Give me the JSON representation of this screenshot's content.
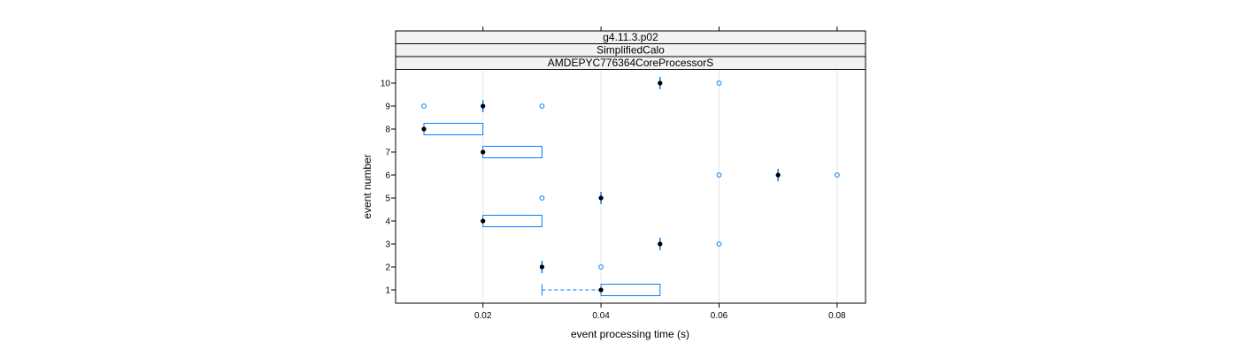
{
  "chart_data": {
    "type": "box",
    "strips": [
      "g4.11.3.p02",
      "SimplifiedCalo",
      "AMDEPYC776364CoreProcessorS"
    ],
    "xlabel": "event processing time (s)",
    "ylabel": "event number",
    "xlim": [
      0.005,
      0.085
    ],
    "x_ticks": [
      {
        "value": 0.02,
        "label": "0.02"
      },
      {
        "value": 0.04,
        "label": "0.04"
      },
      {
        "value": 0.06,
        "label": "0.06"
      },
      {
        "value": 0.08,
        "label": "0.08"
      }
    ],
    "categories": [
      "1",
      "2",
      "3",
      "4",
      "5",
      "6",
      "7",
      "8",
      "9",
      "10"
    ],
    "grid": true,
    "colors": {
      "box": "#0080ff",
      "median": "#000000",
      "outlier": "#0080ff",
      "grid": "#e6e6e6",
      "strip_bg": "#f2f2f2"
    },
    "events": [
      {
        "event": "1",
        "whisker_low": 0.03,
        "q1": 0.04,
        "median": 0.04,
        "q3": 0.05,
        "whisker_high": 0.05,
        "outliers": []
      },
      {
        "event": "2",
        "whisker_low": 0.03,
        "q1": 0.03,
        "median": 0.03,
        "q3": 0.03,
        "whisker_high": 0.03,
        "outliers": [
          0.04
        ]
      },
      {
        "event": "3",
        "whisker_low": 0.05,
        "q1": 0.05,
        "median": 0.05,
        "q3": 0.05,
        "whisker_high": 0.05,
        "outliers": [
          0.06
        ]
      },
      {
        "event": "4",
        "whisker_low": 0.02,
        "q1": 0.02,
        "median": 0.02,
        "q3": 0.03,
        "whisker_high": 0.03,
        "outliers": []
      },
      {
        "event": "5",
        "whisker_low": 0.04,
        "q1": 0.04,
        "median": 0.04,
        "q3": 0.04,
        "whisker_high": 0.04,
        "outliers": [
          0.03
        ]
      },
      {
        "event": "6",
        "whisker_low": 0.07,
        "q1": 0.07,
        "median": 0.07,
        "q3": 0.07,
        "whisker_high": 0.07,
        "outliers": [
          0.06,
          0.08
        ]
      },
      {
        "event": "7",
        "whisker_low": 0.02,
        "q1": 0.02,
        "median": 0.02,
        "q3": 0.03,
        "whisker_high": 0.03,
        "outliers": []
      },
      {
        "event": "8",
        "whisker_low": 0.01,
        "q1": 0.01,
        "median": 0.01,
        "q3": 0.02,
        "whisker_high": 0.02,
        "outliers": []
      },
      {
        "event": "9",
        "whisker_low": 0.02,
        "q1": 0.02,
        "median": 0.02,
        "q3": 0.02,
        "whisker_high": 0.02,
        "outliers": [
          0.01,
          0.03
        ]
      },
      {
        "event": "10",
        "whisker_low": 0.05,
        "q1": 0.05,
        "median": 0.05,
        "q3": 0.05,
        "whisker_high": 0.05,
        "outliers": [
          0.06
        ]
      }
    ]
  }
}
